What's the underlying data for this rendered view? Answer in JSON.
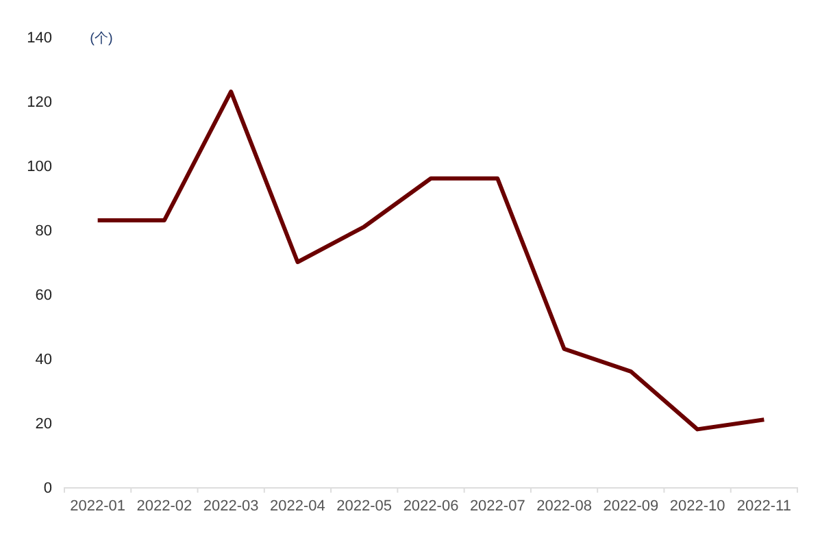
{
  "chart_data": {
    "type": "line",
    "ylabel": "(个)",
    "categories": [
      "2022-01",
      "2022-02",
      "2022-03",
      "2022-04",
      "2022-05",
      "2022-06",
      "2022-07",
      "2022-08",
      "2022-09",
      "2022-10",
      "2022-11"
    ],
    "series": [
      {
        "color": "#6b0000",
        "values": [
          83,
          83,
          123,
          70,
          81,
          96,
          96,
          43,
          36,
          18,
          21
        ]
      }
    ],
    "ylim": [
      0,
      140
    ],
    "yticks": [
      0,
      20,
      40,
      60,
      80,
      100,
      120,
      140
    ]
  }
}
